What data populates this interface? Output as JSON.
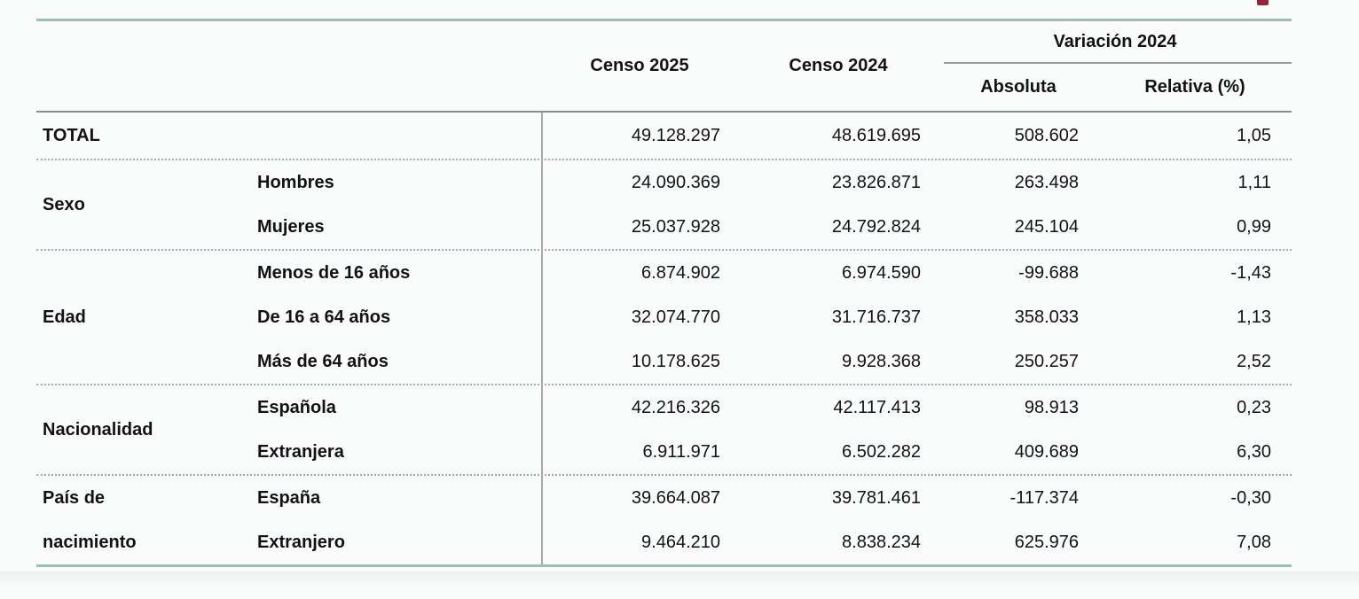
{
  "colors": {
    "accent_teal": "#9bbfb7",
    "logo_red": "#942636"
  },
  "table": {
    "header": {
      "censo_2025": "Censo 2025",
      "censo_2024": "Censo 2024",
      "variacion_group": "Variación 2024",
      "absoluta": "Absoluta",
      "relativa": "Relativa (%)"
    },
    "total_row": {
      "label": "TOTAL",
      "censo_2025": "49.128.297",
      "censo_2024": "48.619.695",
      "absoluta": "508.602",
      "relativa": "1,05"
    },
    "groups": [
      {
        "label": "Sexo",
        "rows": [
          {
            "label": "Hombres",
            "censo_2025": "24.090.369",
            "censo_2024": "23.826.871",
            "absoluta": "263.498",
            "relativa": "1,11"
          },
          {
            "label": "Mujeres",
            "censo_2025": "25.037.928",
            "censo_2024": "24.792.824",
            "absoluta": "245.104",
            "relativa": "0,99"
          }
        ]
      },
      {
        "label": "Edad",
        "rows": [
          {
            "label": "Menos de 16 años",
            "censo_2025": "6.874.902",
            "censo_2024": "6.974.590",
            "absoluta": "-99.688",
            "relativa": "-1,43"
          },
          {
            "label": "De 16 a 64 años",
            "censo_2025": "32.074.770",
            "censo_2024": "31.716.737",
            "absoluta": "358.033",
            "relativa": "1,13"
          },
          {
            "label": "Más de 64 años",
            "censo_2025": "10.178.625",
            "censo_2024": "9.928.368",
            "absoluta": "250.257",
            "relativa": "2,52"
          }
        ]
      },
      {
        "label": "Nacionalidad",
        "rows": [
          {
            "label": "Española",
            "censo_2025": "42.216.326",
            "censo_2024": "42.117.413",
            "absoluta": "98.913",
            "relativa": "0,23"
          },
          {
            "label": "Extranjera",
            "censo_2025": "6.911.971",
            "censo_2024": "6.502.282",
            "absoluta": "409.689",
            "relativa": "6,30"
          }
        ]
      },
      {
        "label": "País de nacimiento",
        "rows": [
          {
            "label": "España",
            "censo_2025": "39.664.087",
            "censo_2024": "39.781.461",
            "absoluta": "-117.374",
            "relativa": "-0,30"
          },
          {
            "label": "Extranjero",
            "censo_2025": "9.464.210",
            "censo_2024": "8.838.234",
            "absoluta": "625.976",
            "relativa": "7,08"
          }
        ]
      }
    ]
  }
}
